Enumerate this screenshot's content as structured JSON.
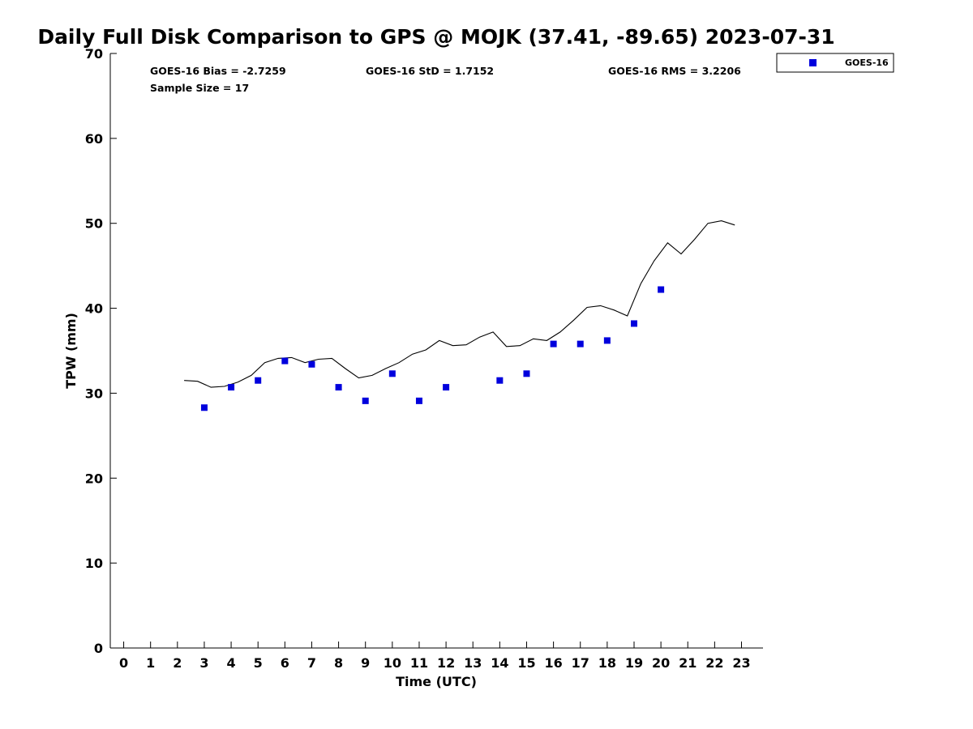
{
  "chart_data": {
    "type": "scatter",
    "title": "Daily Full Disk Comparison to GPS @ MOJK (37.41, -89.65) 2023-07-31",
    "xlabel": "Time (UTC)",
    "ylabel": "TPW (mm)",
    "xlim": [
      -0.5,
      23.8
    ],
    "ylim": [
      0,
      70
    ],
    "x_ticks": [
      0,
      1,
      2,
      3,
      4,
      5,
      6,
      7,
      8,
      9,
      10,
      11,
      12,
      13,
      14,
      15,
      16,
      17,
      18,
      19,
      20,
      21,
      22,
      23
    ],
    "y_ticks": [
      0,
      10,
      20,
      30,
      40,
      50,
      60,
      70
    ],
    "grid": false,
    "legend": {
      "position": "outside-top-right",
      "entries": [
        "GOES-16"
      ]
    },
    "stats": {
      "bias": "GOES-16 Bias = -2.7259",
      "std": "GOES-16 StD = 1.7152",
      "rms": "GOES-16 RMS = 3.2206",
      "sample_size": "Sample Size = 17"
    },
    "series": [
      {
        "name": "GOES-16",
        "kind": "scatter",
        "marker": "square",
        "color": "#0000dd",
        "x": [
          3,
          4,
          5,
          6,
          7,
          8,
          9,
          10,
          11,
          12,
          14,
          15,
          16,
          17,
          18,
          19,
          20
        ],
        "y": [
          28.3,
          30.7,
          31.5,
          33.8,
          33.4,
          30.7,
          29.1,
          32.3,
          29.1,
          30.7,
          31.5,
          32.3,
          35.8,
          35.8,
          36.2,
          38.2,
          42.2
        ]
      },
      {
        "kind": "line",
        "color": "#000000",
        "x": [
          2.25,
          2.75,
          3.25,
          3.75,
          4.25,
          4.75,
          5.25,
          5.75,
          6.25,
          6.75,
          7.25,
          7.75,
          8.25,
          8.75,
          9.25,
          9.75,
          10.25,
          10.75,
          11.25,
          11.75,
          12.25,
          12.75,
          13.25,
          13.75,
          14.25,
          14.75,
          15.25,
          15.75,
          16.25,
          16.75,
          17.25,
          17.75,
          18.25,
          18.75,
          19.25,
          19.75,
          20.25,
          20.75,
          21.25,
          21.75,
          22.25,
          22.75
        ],
        "y": [
          31.5,
          31.4,
          30.7,
          30.8,
          31.3,
          32.1,
          33.6,
          34.1,
          34.2,
          33.6,
          34.0,
          34.1,
          32.9,
          31.8,
          32.1,
          32.9,
          33.6,
          34.6,
          35.1,
          36.2,
          35.6,
          35.7,
          36.6,
          37.2,
          35.5,
          35.6,
          36.4,
          36.2,
          37.2,
          38.6,
          40.1,
          40.3,
          39.8,
          39.1,
          42.9,
          45.6,
          47.7,
          46.4,
          48.1,
          50.0,
          50.3,
          49.8
        ]
      }
    ]
  }
}
